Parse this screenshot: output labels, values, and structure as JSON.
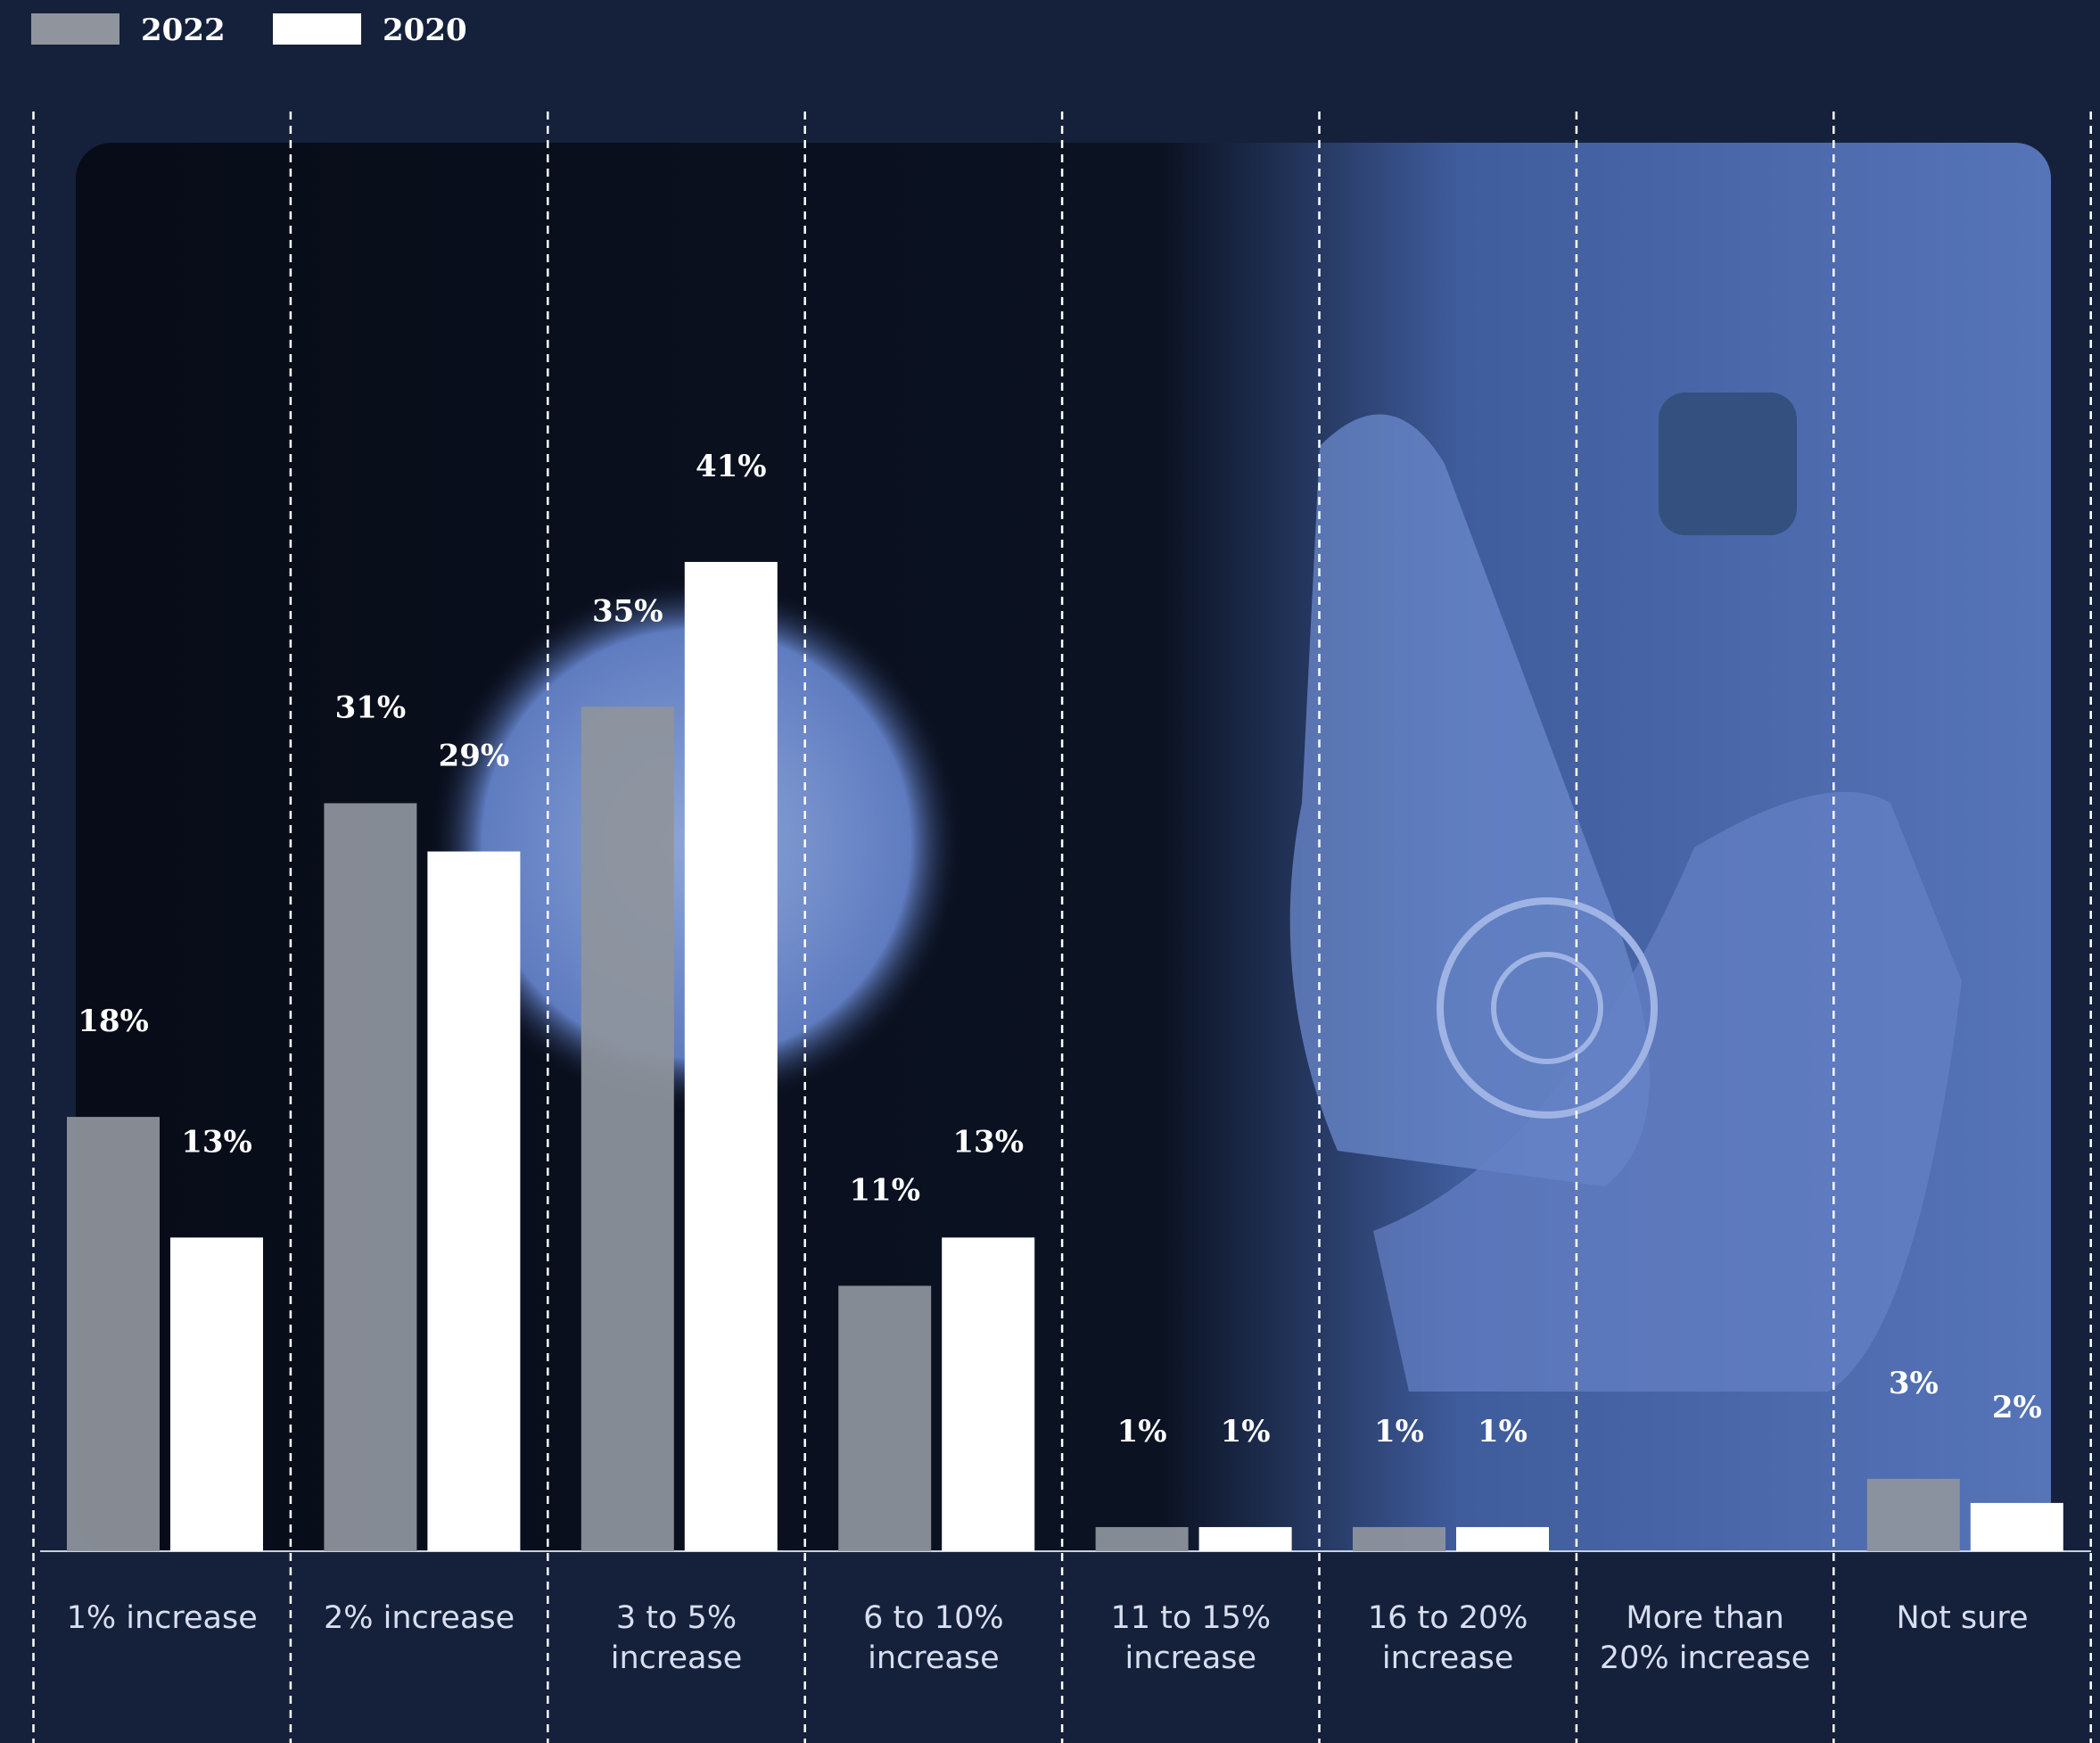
{
  "chart_data": {
    "type": "bar",
    "categories": [
      "1% increase",
      "2% increase",
      "3 to 5% increase",
      "6 to 10% increase",
      "11 to 15% increase",
      "16 to 20% increase",
      "More than 20% increase",
      "Not sure"
    ],
    "series": [
      {
        "name": "2022",
        "color": "#8f949d",
        "values": [
          18,
          31,
          35,
          11,
          1,
          1,
          null,
          3
        ],
        "value_labels": [
          "18%",
          "31%",
          "35%",
          "11%",
          "1%",
          "1%",
          null,
          "3%"
        ]
      },
      {
        "name": "2020",
        "color": "#ffffff",
        "values": [
          13,
          29,
          41,
          13,
          1,
          1,
          null,
          2
        ],
        "value_labels": [
          "13%",
          "29%",
          "41%",
          "13%",
          "1%",
          "1%",
          null,
          "2%"
        ]
      }
    ]
  }
}
